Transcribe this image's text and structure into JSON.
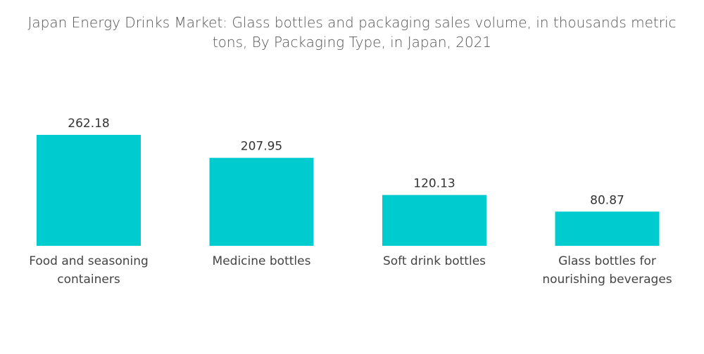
{
  "chart_data": {
    "type": "bar",
    "title_lines": [
      "Japan Energy Drinks Market: Glass bottles and packaging sales volume, in thousands metric",
      "tons, By Packaging Type, in Japan, 2021"
    ],
    "categories": [
      [
        "Food and seasoning",
        "containers"
      ],
      [
        "Medicine bottles"
      ],
      [
        "Soft drink bottles"
      ],
      [
        "Glass bottles for",
        "nourishing beverages"
      ]
    ],
    "values": [
      262.18,
      207.95,
      120.13,
      80.87
    ],
    "value_labels": [
      "262.18",
      "207.95",
      "120.13",
      "80.87"
    ],
    "xlabel": "",
    "ylabel": "",
    "ylim": [
      0,
      262.18
    ],
    "grid": false,
    "legend": "none",
    "colors": {
      "bar": "#00CCD0"
    }
  }
}
